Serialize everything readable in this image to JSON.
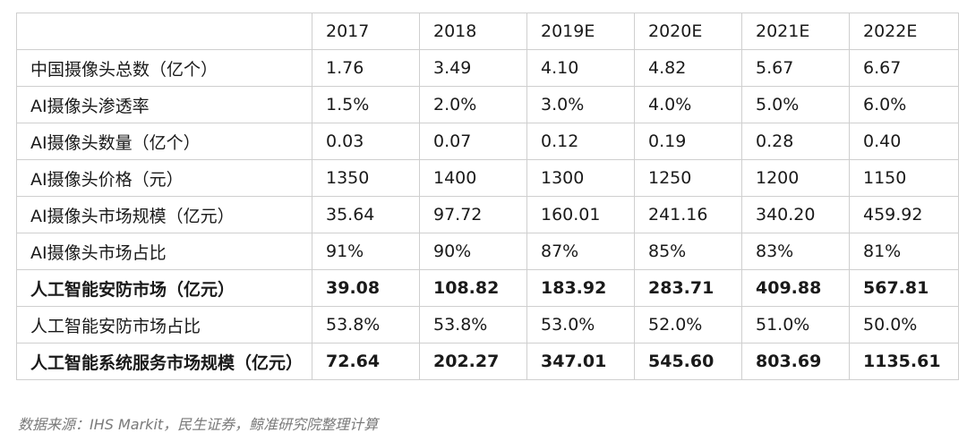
{
  "table": {
    "headers": [
      "",
      "2017",
      "2018",
      "2019E",
      "2020E",
      "2021E",
      "2022E"
    ],
    "rows": [
      {
        "label": "中国摄像头总数（亿个）",
        "values": [
          "1.76",
          "3.49",
          "4.10",
          "4.82",
          "5.67",
          "6.67"
        ],
        "bold": false
      },
      {
        "label": "AI摄像头渗透率",
        "values": [
          "1.5%",
          "2.0%",
          "3.0%",
          "4.0%",
          "5.0%",
          "6.0%"
        ],
        "bold": false
      },
      {
        "label": "AI摄像头数量（亿个）",
        "values": [
          "0.03",
          "0.07",
          "0.12",
          "0.19",
          "0.28",
          "0.40"
        ],
        "bold": false
      },
      {
        "label": "AI摄像头价格（元）",
        "values": [
          "1350",
          "1400",
          "1300",
          "1250",
          "1200",
          "1150"
        ],
        "bold": false
      },
      {
        "label": "AI摄像头市场规模（亿元）",
        "values": [
          "35.64",
          "97.72",
          "160.01",
          "241.16",
          "340.20",
          "459.92"
        ],
        "bold": false
      },
      {
        "label": "AI摄像头市场占比",
        "values": [
          "91%",
          "90%",
          "87%",
          "85%",
          "83%",
          "81%"
        ],
        "bold": false
      },
      {
        "label": "人工智能安防市场（亿元）",
        "values": [
          "39.08",
          "108.82",
          "183.92",
          "283.71",
          "409.88",
          "567.81"
        ],
        "bold": true
      },
      {
        "label": "人工智能安防市场占比",
        "values": [
          "53.8%",
          "53.8%",
          "53.0%",
          "52.0%",
          "51.0%",
          "50.0%"
        ],
        "bold": false
      },
      {
        "label": "人工智能系统服务市场规模（亿元）",
        "values": [
          "72.64",
          "202.27",
          "347.01",
          "545.60",
          "803.69",
          "1135.61"
        ],
        "bold": true
      }
    ]
  },
  "source": "数据来源：IHS Markit，民生证券，鲸准研究院整理计算"
}
